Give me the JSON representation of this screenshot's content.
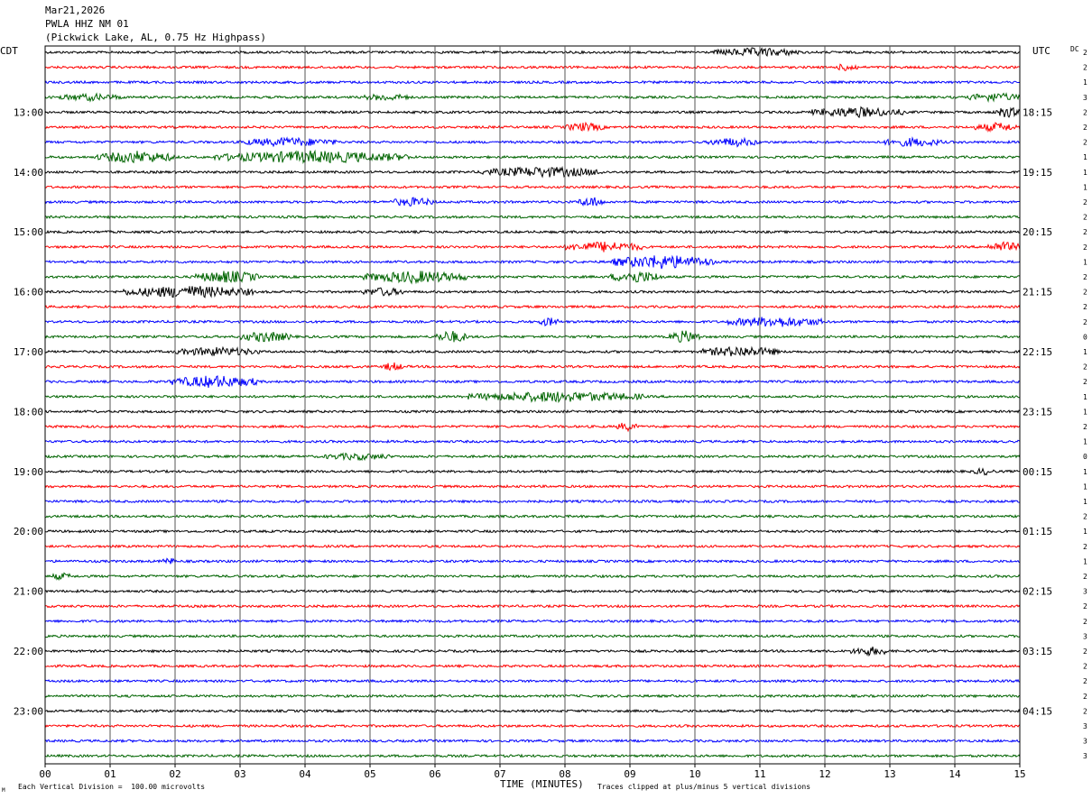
{
  "header": {
    "date": "Mar21,2026",
    "station": "PWLA HHZ NM 01",
    "location": "(Pickwick Lake, AL, 0.75 Hz Highpass)"
  },
  "left_tz": "CDT",
  "right_tz": "UTC",
  "dc_label": "DC",
  "xlabel": "TIME (MINUTES)",
  "footer": {
    "left": "Each Vertical Division =  100.00 microvolts",
    "right": "Traces clipped at plus/minus 5 vertical divisions",
    "corner_mark": "M"
  },
  "colors": {
    "trace_cycle": [
      "#000000",
      "#ff0000",
      "#0000ff",
      "#006400"
    ],
    "grid": "#000000"
  },
  "chart_data": {
    "type": "line",
    "title": "PWLA HHZ NM 01",
    "xlim": [
      0,
      15
    ],
    "x_ticks": [
      "00",
      "01",
      "02",
      "03",
      "04",
      "05",
      "06",
      "07",
      "08",
      "09",
      "10",
      "11",
      "12",
      "13",
      "14",
      "15"
    ],
    "left_hour_labels": [
      "13:00",
      "14:00",
      "15:00",
      "16:00",
      "17:00",
      "18:00",
      "19:00",
      "20:00",
      "21:00",
      "22:00",
      "23:00"
    ],
    "right_hour_labels": [
      "18:15",
      "19:15",
      "20:15",
      "21:15",
      "22:15",
      "23:15",
      "00:15",
      "01:15",
      "02:15",
      "03:15",
      "04:15"
    ],
    "trace_count": 48,
    "dc_values": [
      2,
      2,
      1,
      3,
      2,
      2,
      2,
      1,
      1,
      1,
      2,
      2,
      2,
      2,
      1,
      2,
      2,
      2,
      2,
      0,
      1,
      2,
      2,
      1,
      1,
      2,
      1,
      0,
      1,
      1,
      1,
      2,
      1,
      2,
      1,
      2,
      3,
      2,
      2,
      3,
      2,
      2,
      2,
      2,
      2,
      3,
      3,
      3
    ],
    "event_bursts": [
      {
        "trace": 0,
        "start": 10.3,
        "end": 11.6,
        "amp": 4
      },
      {
        "trace": 1,
        "start": 12.2,
        "end": 12.5,
        "amp": 4
      },
      {
        "trace": 3,
        "start": 0.2,
        "end": 1.2,
        "amp": 3
      },
      {
        "trace": 3,
        "start": 4.9,
        "end": 5.6,
        "amp": 3
      },
      {
        "trace": 3,
        "start": 14.2,
        "end": 15.0,
        "amp": 4
      },
      {
        "trace": 4,
        "start": 11.8,
        "end": 13.2,
        "amp": 5
      },
      {
        "trace": 4,
        "start": 14.6,
        "end": 15.0,
        "amp": 5
      },
      {
        "trace": 5,
        "start": 8.0,
        "end": 8.6,
        "amp": 4
      },
      {
        "trace": 5,
        "start": 14.3,
        "end": 15.0,
        "amp": 4
      },
      {
        "trace": 6,
        "start": 3.0,
        "end": 4.5,
        "amp": 4
      },
      {
        "trace": 6,
        "start": 10.2,
        "end": 11.0,
        "amp": 4
      },
      {
        "trace": 6,
        "start": 12.9,
        "end": 13.8,
        "amp": 4
      },
      {
        "trace": 7,
        "start": 0.8,
        "end": 2.0,
        "amp": 6
      },
      {
        "trace": 7,
        "start": 2.6,
        "end": 5.6,
        "amp": 6
      },
      {
        "trace": 8,
        "start": 6.7,
        "end": 8.6,
        "amp": 5
      },
      {
        "trace": 10,
        "start": 5.3,
        "end": 6.0,
        "amp": 4
      },
      {
        "trace": 10,
        "start": 8.2,
        "end": 8.6,
        "amp": 5
      },
      {
        "trace": 13,
        "start": 8.0,
        "end": 9.2,
        "amp": 5
      },
      {
        "trace": 13,
        "start": 14.5,
        "end": 15.0,
        "amp": 5
      },
      {
        "trace": 14,
        "start": 8.7,
        "end": 10.3,
        "amp": 7
      },
      {
        "trace": 15,
        "start": 2.3,
        "end": 3.3,
        "amp": 6
      },
      {
        "trace": 15,
        "start": 4.9,
        "end": 6.5,
        "amp": 6
      },
      {
        "trace": 15,
        "start": 8.7,
        "end": 9.5,
        "amp": 6
      },
      {
        "trace": 16,
        "start": 1.2,
        "end": 3.2,
        "amp": 6
      },
      {
        "trace": 16,
        "start": 4.9,
        "end": 5.5,
        "amp": 4
      },
      {
        "trace": 18,
        "start": 7.6,
        "end": 7.9,
        "amp": 4
      },
      {
        "trace": 18,
        "start": 10.5,
        "end": 12.0,
        "amp": 5
      },
      {
        "trace": 19,
        "start": 3.0,
        "end": 3.8,
        "amp": 5
      },
      {
        "trace": 19,
        "start": 6.0,
        "end": 6.5,
        "amp": 6
      },
      {
        "trace": 19,
        "start": 9.6,
        "end": 10.1,
        "amp": 6
      },
      {
        "trace": 20,
        "start": 2.0,
        "end": 3.3,
        "amp": 4
      },
      {
        "trace": 20,
        "start": 10.1,
        "end": 11.3,
        "amp": 5
      },
      {
        "trace": 21,
        "start": 5.2,
        "end": 5.5,
        "amp": 4
      },
      {
        "trace": 22,
        "start": 1.9,
        "end": 3.3,
        "amp": 6
      },
      {
        "trace": 23,
        "start": 6.5,
        "end": 9.2,
        "amp": 5
      },
      {
        "trace": 25,
        "start": 8.8,
        "end": 9.1,
        "amp": 4
      },
      {
        "trace": 27,
        "start": 4.3,
        "end": 5.3,
        "amp": 3
      },
      {
        "trace": 28,
        "start": 14.3,
        "end": 14.6,
        "amp": 3
      },
      {
        "trace": 34,
        "start": 1.8,
        "end": 2.0,
        "amp": 3
      },
      {
        "trace": 35,
        "start": 0.1,
        "end": 0.4,
        "amp": 3
      },
      {
        "trace": 40,
        "start": 12.4,
        "end": 13.0,
        "amp": 4
      }
    ]
  }
}
